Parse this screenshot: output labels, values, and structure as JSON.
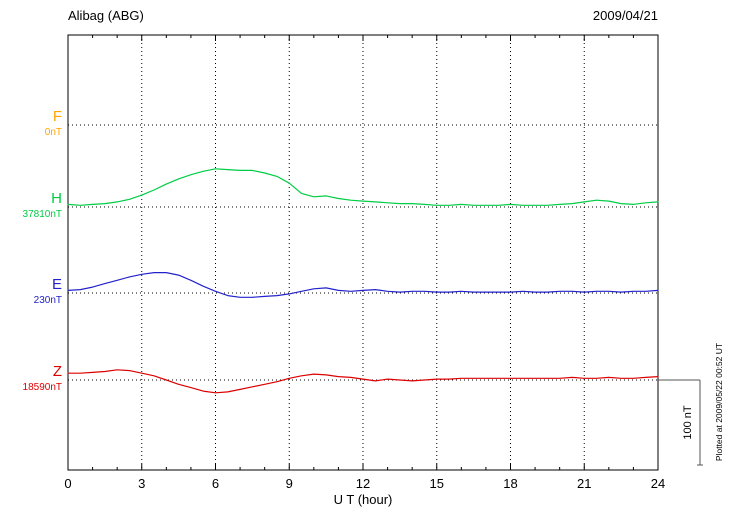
{
  "header": {
    "station": "Alibag (ABG)",
    "date": "2009/04/21"
  },
  "side_note": "Plotted at 2009/05/22 00:52 UT",
  "scale_bar": {
    "label": "100 nT",
    "nT": 100
  },
  "chart_data": {
    "type": "line",
    "title": "Alibag (ABG) magnetogram for 2009/04/21",
    "xlabel": "U T (hour)",
    "xlim": [
      0,
      24
    ],
    "x_ticks": [
      0,
      3,
      6,
      9,
      12,
      15,
      18,
      21,
      24
    ],
    "grid": "dotted vertical lines every 3 hours; dotted horizontal baseline per component",
    "values_unit": "nT deviation from component baseline",
    "x": [
      0,
      0.5,
      1,
      1.5,
      2,
      2.5,
      3,
      3.5,
      4,
      4.5,
      5,
      5.5,
      6,
      6.5,
      7,
      7.5,
      8,
      8.5,
      9,
      9.5,
      10,
      10.5,
      11,
      11.5,
      12,
      12.5,
      13,
      13.5,
      14,
      14.5,
      15,
      15.5,
      16,
      16.5,
      17,
      17.5,
      18,
      18.5,
      19,
      19.5,
      20,
      20.5,
      21,
      21.5,
      22,
      22.5,
      23,
      23.5,
      24
    ],
    "series": [
      {
        "name": "F",
        "baseline_label": "0nT",
        "baseline_nT": 0,
        "color": "#ffa500",
        "values": []
      },
      {
        "name": "H",
        "baseline_label": "37810nT",
        "baseline_nT": 37810,
        "color": "#00cc44",
        "values": [
          3,
          2,
          3,
          4,
          6,
          9,
          14,
          20,
          27,
          33,
          38,
          42,
          45,
          44,
          43,
          43,
          40,
          36,
          28,
          16,
          12,
          13,
          10,
          8,
          7,
          6,
          5,
          4,
          4,
          3,
          2,
          2,
          3,
          2,
          2,
          2,
          3,
          2,
          2,
          2,
          3,
          4,
          6,
          8,
          7,
          4,
          3,
          5,
          6
        ]
      },
      {
        "name": "E",
        "baseline_label": "230nT",
        "baseline_nT": 230,
        "color": "#2222cc",
        "values": [
          3,
          4,
          7,
          11,
          15,
          19,
          22,
          24,
          24,
          21,
          15,
          8,
          2,
          -3,
          -5,
          -5,
          -4,
          -3,
          -1,
          2,
          5,
          6,
          3,
          2,
          3,
          4,
          2,
          1,
          2,
          2,
          1,
          1,
          2,
          1,
          1,
          1,
          1,
          2,
          1,
          1,
          2,
          2,
          1,
          2,
          2,
          1,
          2,
          2,
          3
        ]
      },
      {
        "name": "Z",
        "baseline_label": "18590nT",
        "baseline_nT": 18590,
        "color": "#dd0000",
        "values": [
          8,
          8,
          9,
          10,
          12,
          11,
          8,
          5,
          0,
          -5,
          -9,
          -13,
          -15,
          -14,
          -11,
          -8,
          -5,
          -2,
          2,
          5,
          7,
          6,
          4,
          3,
          1,
          -1,
          1,
          0,
          -1,
          0,
          1,
          1,
          2,
          2,
          2,
          2,
          2,
          2,
          2,
          2,
          2,
          3,
          2,
          2,
          3,
          2,
          2,
          3,
          4
        ]
      }
    ]
  }
}
